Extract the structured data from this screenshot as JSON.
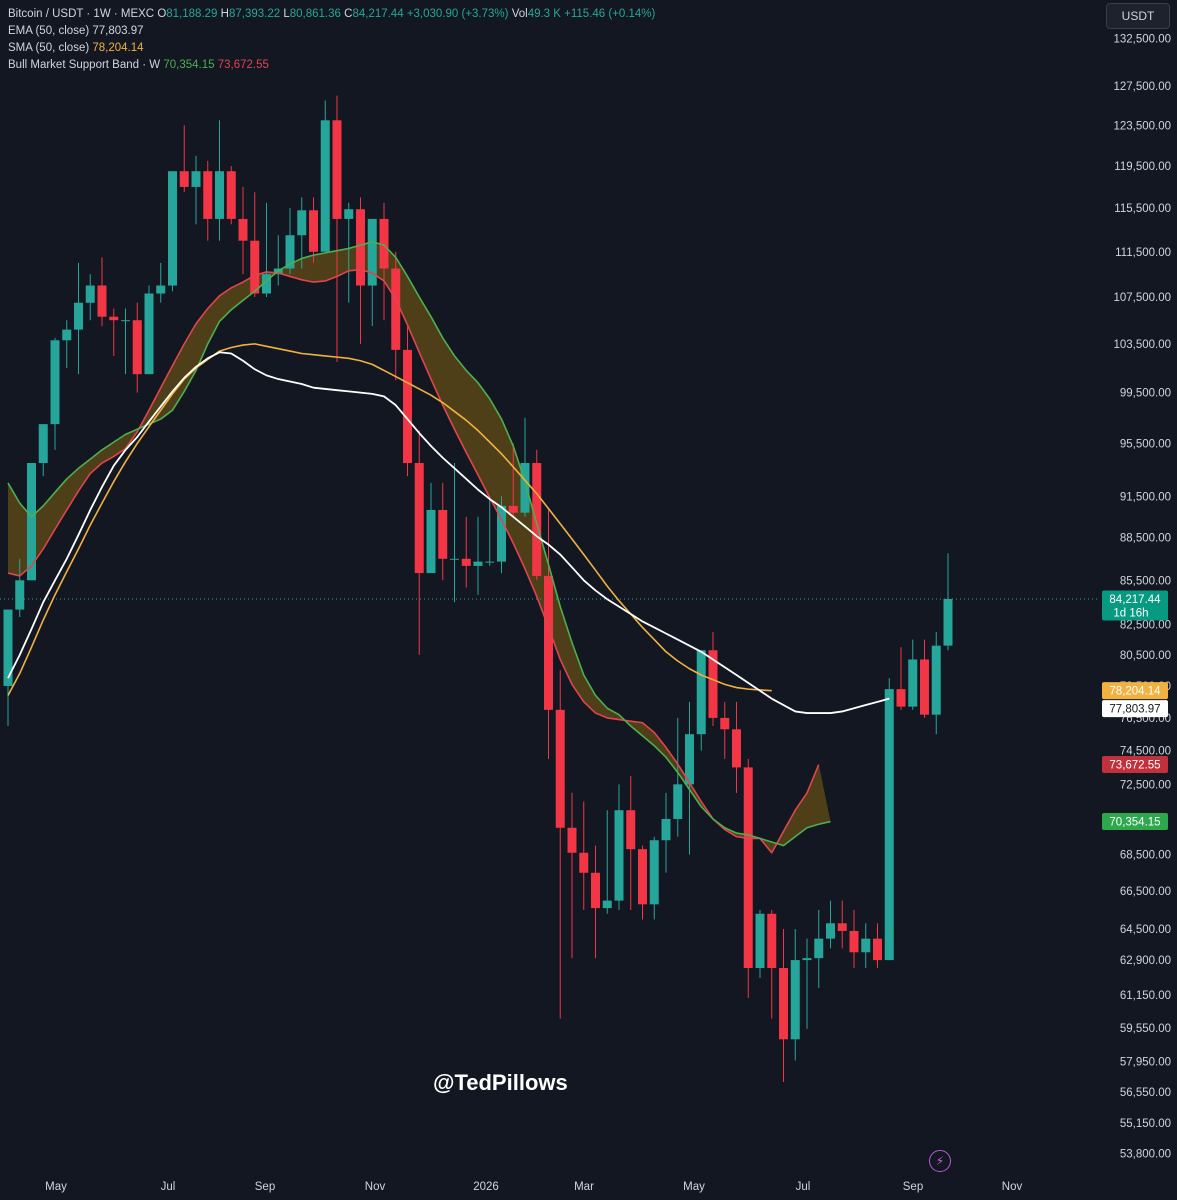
{
  "header": {
    "symbol": "Bitcoin / USDT · 1W · MEXC",
    "open_label": "O",
    "open": "81,188.29",
    "high_label": "H",
    "high": "87,393.22",
    "low_label": "L",
    "low": "80,861.36",
    "close_label": "C",
    "close": "84,217.44",
    "change": "+3,030.90 (+3.73%)",
    "vol_label": "Vol",
    "vol": "49.3 K",
    "vol_change": "+115.46 (+0.14%)",
    "ema_label": "EMA (50, close)",
    "ema_value": "77,803.97",
    "sma_label": "SMA (50, close)",
    "sma_value": "78,204.14",
    "band_label": "Bull Market Support Band · W",
    "band_value_1": "70,354.15",
    "band_value_2": "73,672.55"
  },
  "currency": "USDT",
  "watermark": "@TedPillows",
  "colors": {
    "background": "#131722",
    "up": "#26a69a",
    "down": "#f23645",
    "ema": "#ffffff",
    "sma": "#f0b140",
    "band_upper": "#4caf50",
    "band_lower": "#e0444f",
    "band_fill": "#5a4616"
  },
  "chart_data": {
    "type": "candlestick",
    "interval": "1W",
    "x_ticks": [
      "May",
      "Jul",
      "Sep",
      "Nov",
      "2026",
      "Mar",
      "May",
      "Jul",
      "Sep",
      "Nov"
    ],
    "y_ticks": [
      "132,500.00",
      "127,500.00",
      "123,500.00",
      "119,500.00",
      "115,500.00",
      "111,500.00",
      "107,500.00",
      "103,500.00",
      "99,500.00",
      "95,500.00",
      "91,500.00",
      "88,500.00",
      "85,500.00",
      "82,500.00",
      "80,500.00",
      "78,500.00",
      "76,500.00",
      "74,500.00",
      "72,500.00",
      "68,500.00",
      "66,500.00",
      "64,500.00",
      "62,900.00",
      "61,150.00",
      "59,550.00",
      "57,950.00",
      "56,550.00",
      "55,150.00",
      "53,800.00"
    ],
    "y_scale": "log",
    "y_range": [
      53000,
      136000
    ],
    "price_labels": [
      {
        "value": 84217.44,
        "text": "84,217.44",
        "sub": "1d 16h",
        "color": "#089981"
      },
      {
        "value": 78204.14,
        "text": "78,204.14",
        "color": "#f0b140"
      },
      {
        "value": 77803.97,
        "text": "77,803.97",
        "color": "#ffffff"
      },
      {
        "value": 73672.55,
        "text": "73,672.55",
        "color": "#c2303c"
      },
      {
        "value": 70354.15,
        "text": "70,354.15",
        "color": "#2ea84c"
      }
    ],
    "candles": [
      [
        78500,
        83500,
        76000,
        83500
      ],
      [
        83500,
        87000,
        83000,
        85500
      ],
      [
        85500,
        94000,
        85500,
        94000
      ],
      [
        94000,
        97000,
        93000,
        97000
      ],
      [
        97000,
        104000,
        95000,
        103800
      ],
      [
        103800,
        105500,
        101500,
        104700
      ],
      [
        104700,
        110500,
        101000,
        107000
      ],
      [
        107000,
        109500,
        105500,
        108500
      ],
      [
        108500,
        111000,
        105000,
        105800
      ],
      [
        105800,
        106500,
        102500,
        105500
      ],
      [
        105500,
        106500,
        101000,
        105500
      ],
      [
        105500,
        107000,
        99500,
        101000
      ],
      [
        101000,
        108500,
        101000,
        107800
      ],
      [
        107800,
        110500,
        107000,
        108500
      ],
      [
        108500,
        119000,
        108000,
        119000
      ],
      [
        119000,
        123500,
        117000,
        117500
      ],
      [
        117500,
        120500,
        114000,
        119000
      ],
      [
        119000,
        120000,
        112500,
        114500
      ],
      [
        114500,
        124000,
        112500,
        119000
      ],
      [
        119000,
        119500,
        114000,
        114500
      ],
      [
        114500,
        117500,
        109500,
        112500
      ],
      [
        112500,
        117000,
        107500,
        107800
      ],
      [
        107800,
        116000,
        107500,
        109500
      ],
      [
        109500,
        113000,
        108500,
        110000
      ],
      [
        110000,
        115500,
        109500,
        113000
      ],
      [
        113000,
        116500,
        110000,
        115300
      ],
      [
        115300,
        116500,
        110500,
        111500
      ],
      [
        111500,
        126000,
        111500,
        124000
      ],
      [
        124000,
        126500,
        102000,
        114500
      ],
      [
        114500,
        116000,
        107000,
        115400
      ],
      [
        115400,
        116500,
        103500,
        108500
      ],
      [
        108500,
        114500,
        105000,
        114500
      ],
      [
        114500,
        116000,
        105500,
        110000
      ],
      [
        110000,
        111500,
        100500,
        103000
      ],
      [
        103000,
        105000,
        93000,
        94000
      ],
      [
        94000,
        96500,
        80500,
        86000
      ],
      [
        86000,
        92500,
        86000,
        90500
      ],
      [
        90500,
        92500,
        85500,
        87000
      ],
      [
        87000,
        94000,
        84000,
        87000
      ],
      [
        87000,
        90000,
        85000,
        86500
      ],
      [
        86500,
        90000,
        84500,
        86800
      ],
      [
        86800,
        91500,
        86500,
        86800
      ],
      [
        86800,
        91500,
        86000,
        90800
      ],
      [
        90800,
        95500,
        90000,
        90300
      ],
      [
        90300,
        97500,
        90000,
        94000
      ],
      [
        94000,
        95000,
        85500,
        85800
      ],
      [
        85800,
        90500,
        74000,
        77000
      ],
      [
        77000,
        79500,
        60000,
        70000
      ],
      [
        70000,
        72000,
        63000,
        68600
      ],
      [
        68600,
        71500,
        65500,
        67500
      ],
      [
        67500,
        69000,
        63000,
        65600
      ],
      [
        65600,
        71000,
        65300,
        66000
      ],
      [
        66000,
        72500,
        65500,
        71000
      ],
      [
        71000,
        73000,
        65500,
        68800
      ],
      [
        68800,
        69000,
        65000,
        65800
      ],
      [
        65800,
        69500,
        65000,
        69300
      ],
      [
        69300,
        72000,
        67500,
        70500
      ],
      [
        70500,
        76500,
        69500,
        72500
      ],
      [
        72500,
        77500,
        68500,
        75500
      ],
      [
        75500,
        80500,
        74500,
        80800
      ],
      [
        80800,
        82000,
        76000,
        76500
      ],
      [
        76500,
        77500,
        74000,
        75800
      ],
      [
        75800,
        77500,
        72000,
        73500
      ],
      [
        73500,
        74000,
        61000,
        62500
      ],
      [
        62500,
        65500,
        62000,
        65300
      ],
      [
        65300,
        65500,
        60000,
        62500
      ],
      [
        62500,
        64500,
        57000,
        59000
      ],
      [
        59000,
        64500,
        58000,
        62900
      ],
      [
        62900,
        64000,
        59500,
        63000
      ],
      [
        63000,
        65500,
        61500,
        64000
      ],
      [
        64000,
        66000,
        63500,
        64800
      ],
      [
        64800,
        66000,
        63500,
        64400
      ],
      [
        64400,
        65500,
        62500,
        63300
      ],
      [
        63300,
        64800,
        62500,
        64000
      ],
      [
        64000,
        64800,
        62500,
        62900
      ],
      [
        62900,
        79000,
        62900,
        78300
      ],
      [
        78300,
        81000,
        77000,
        77200
      ],
      [
        77200,
        81500,
        77000,
        80200
      ],
      [
        80200,
        81500,
        76500,
        76700
      ],
      [
        76700,
        82000,
        75500,
        81100
      ],
      [
        81100,
        87393,
        80800,
        84217
      ]
    ],
    "ema50": [
      79000,
      80500,
      82200,
      84000,
      85500,
      87000,
      88700,
      90500,
      92200,
      93800,
      95000,
      96000,
      97200,
      98400,
      99600,
      100700,
      101600,
      102300,
      102800,
      102700,
      102100,
      101400,
      100900,
      100600,
      100400,
      100200,
      99900,
      99800,
      99700,
      99600,
      99500,
      99400,
      99200,
      98500,
      97400,
      96300,
      95300,
      94400,
      93600,
      92800,
      92000,
      91300,
      90700,
      90000,
      89300,
      88600,
      88000,
      87300,
      86400,
      85500,
      84800,
      84200,
      83700,
      83200,
      82700,
      82300,
      81900,
      81500,
      81100,
      80700,
      80200,
      79700,
      79200,
      78700,
      78200,
      77700,
      77300,
      76900,
      76800,
      76800,
      76800,
      76900,
      77100,
      77300,
      77500,
      77700
    ],
    "sma50": [
      77900,
      79300,
      81000,
      82800,
      84500,
      86100,
      87700,
      89400,
      91000,
      92600,
      94100,
      95500,
      96800,
      98100,
      99400,
      100600,
      101500,
      102200,
      102900,
      103200,
      103400,
      103500,
      103300,
      103100,
      102900,
      102700,
      102600,
      102500,
      102400,
      102300,
      102100,
      101800,
      101300,
      100800,
      100300,
      99800,
      99300,
      98700,
      98000,
      97300,
      96500,
      95600,
      94700,
      93700,
      92700,
      91700,
      90600,
      89500,
      88400,
      87300,
      86200,
      85100,
      84100,
      83200,
      82300,
      81500,
      80700,
      80100,
      79600,
      79200,
      78900,
      78600,
      78400,
      78300,
      78250,
      78204
    ],
    "band_upper": [
      92500,
      91000,
      90000,
      90800,
      91800,
      92800,
      93600,
      94300,
      95000,
      95600,
      96200,
      96600,
      97000,
      97400,
      98100,
      99600,
      101300,
      103500,
      105400,
      106400,
      107200,
      108000,
      108900,
      109800,
      110400,
      110900,
      111200,
      111400,
      111600,
      111800,
      112100,
      112400,
      112100,
      111000,
      109300,
      107500,
      105800,
      104000,
      102500,
      101300,
      100300,
      99000,
      97400,
      95300,
      92600,
      89500,
      86600,
      83700,
      81300,
      79200,
      77900,
      77100,
      76700,
      76000,
      75400,
      74800,
      74100,
      73200,
      72200,
      71200,
      70500,
      70000,
      69700,
      69600,
      69400,
      69200,
      69000,
      69500,
      70000,
      70200,
      70354
    ],
    "band_lower": [
      86000,
      85800,
      86500,
      87700,
      89100,
      90500,
      91900,
      93200,
      94000,
      94500,
      95100,
      96400,
      98100,
      99900,
      101700,
      103500,
      105200,
      106500,
      107600,
      108300,
      108800,
      109400,
      109700,
      109600,
      109300,
      109000,
      108800,
      108900,
      109300,
      109800,
      109900,
      109600,
      108900,
      107300,
      105100,
      102800,
      100600,
      98500,
      96600,
      94800,
      93100,
      91400,
      89800,
      88100,
      86300,
      84400,
      82300,
      80200,
      78600,
      77500,
      76800,
      76500,
      76400,
      76300,
      76200,
      75600,
      74700,
      73700,
      72600,
      71500,
      70500,
      69900,
      69500,
      69400,
      69400,
      68600,
      69800,
      71000,
      72000,
      73672
    ]
  }
}
